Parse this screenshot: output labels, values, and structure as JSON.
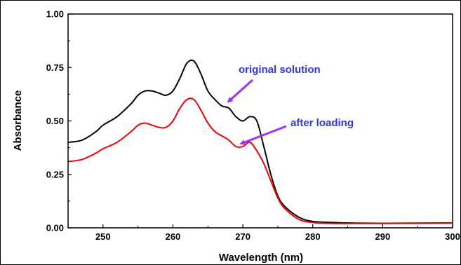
{
  "chart_data": {
    "type": "line",
    "title": "",
    "xlabel": "Wavelength (nm)",
    "ylabel": "Absorbance",
    "xlim": [
      245,
      300
    ],
    "ylim": [
      0.0,
      1.0
    ],
    "x_ticks": [
      250,
      260,
      270,
      280,
      290,
      300
    ],
    "x_tick_labels": [
      "250",
      "260",
      "270",
      "280",
      "290",
      "300"
    ],
    "y_ticks": [
      0.0,
      0.25,
      0.5,
      0.75,
      1.0
    ],
    "y_tick_labels": [
      "0.00",
      "0.25",
      "0.50",
      "0.75",
      "1.00"
    ],
    "grid": false,
    "series": [
      {
        "name": "original solution",
        "color": "#000000",
        "x": [
          245,
          247,
          249,
          250,
          252,
          254,
          255,
          256,
          257,
          258,
          259,
          260,
          261,
          262,
          263,
          264,
          265,
          266,
          267,
          268,
          269,
          270,
          271,
          272,
          273,
          274,
          275,
          276,
          278,
          280,
          283,
          286,
          290,
          295,
          300
        ],
        "y": [
          0.4,
          0.41,
          0.45,
          0.48,
          0.52,
          0.58,
          0.62,
          0.64,
          0.64,
          0.63,
          0.62,
          0.64,
          0.7,
          0.77,
          0.78,
          0.72,
          0.64,
          0.6,
          0.57,
          0.56,
          0.52,
          0.5,
          0.52,
          0.5,
          0.38,
          0.25,
          0.15,
          0.1,
          0.05,
          0.03,
          0.025,
          0.022,
          0.021,
          0.022,
          0.023
        ]
      },
      {
        "name": "after loading",
        "color": "#ff0000",
        "x": [
          245,
          247,
          249,
          250,
          252,
          254,
          255,
          256,
          257,
          258,
          259,
          260,
          261,
          262,
          263,
          264,
          265,
          266,
          267,
          268,
          269,
          270,
          271,
          272,
          273,
          274,
          275,
          276,
          278,
          280,
          283,
          286,
          290,
          295,
          300
        ],
        "y": [
          0.31,
          0.32,
          0.35,
          0.37,
          0.4,
          0.45,
          0.48,
          0.49,
          0.48,
          0.47,
          0.47,
          0.5,
          0.56,
          0.6,
          0.6,
          0.55,
          0.49,
          0.45,
          0.43,
          0.41,
          0.38,
          0.38,
          0.4,
          0.36,
          0.3,
          0.22,
          0.14,
          0.09,
          0.04,
          0.025,
          0.02,
          0.02,
          0.02,
          0.021,
          0.022
        ]
      }
    ],
    "annotations": [
      {
        "text": "original solution",
        "color": "#3333ff",
        "arrow_color": "#9933ff",
        "points_to": [
          267.5,
          0.57
        ]
      },
      {
        "text": "after loading",
        "color": "#3333ff",
        "arrow_color": "#9933ff",
        "points_to": [
          269.5,
          0.38
        ]
      }
    ]
  }
}
